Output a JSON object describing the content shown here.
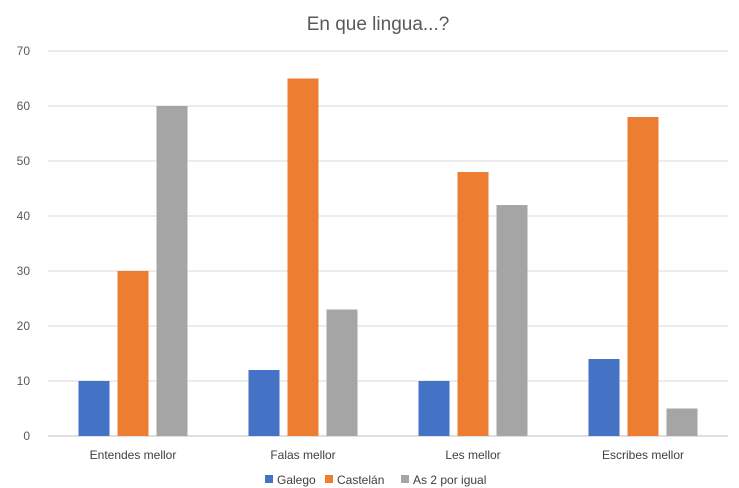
{
  "chart_data": {
    "type": "bar",
    "title": "En que lingua...?",
    "categories": [
      "Entendes mellor",
      "Falas mellor",
      "Les mellor",
      "Escribes mellor"
    ],
    "series": [
      {
        "name": "Galego",
        "color": "#4472c4",
        "values": [
          10,
          12,
          10,
          14
        ]
      },
      {
        "name": "Castelán",
        "color": "#ed7d31",
        "values": [
          30,
          65,
          48,
          58
        ]
      },
      {
        "name": "As 2 por igual",
        "color": "#a5a5a5",
        "values": [
          60,
          23,
          42,
          5
        ]
      }
    ],
    "xlabel": "",
    "ylabel": "",
    "ylim": [
      0,
      70
    ],
    "yticks": [
      0,
      10,
      20,
      30,
      40,
      50,
      60,
      70
    ],
    "grid": true,
    "legend_position": "bottom"
  }
}
